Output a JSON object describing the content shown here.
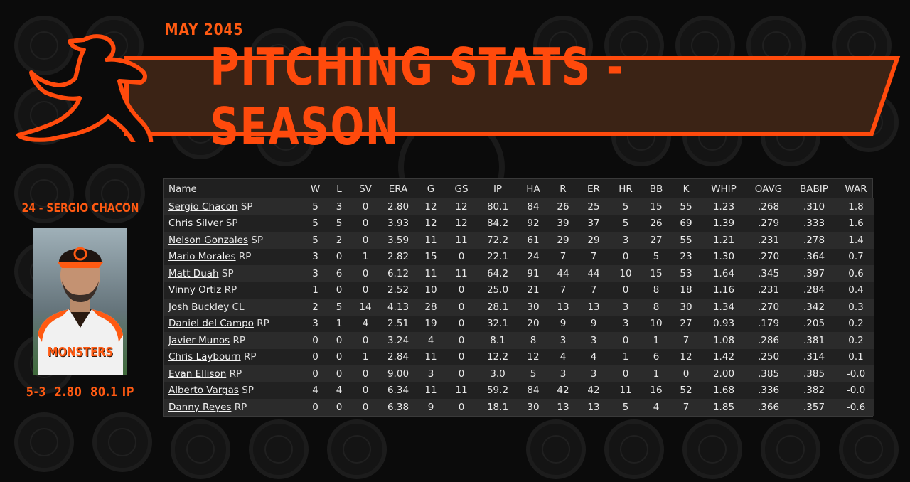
{
  "header": {
    "date": "MAY 2045",
    "title": "PITCHING STATS - SEASON"
  },
  "colors": {
    "accent": "#ff4a0c",
    "banner_fill": "#3b2315",
    "background": "#0b0b0b"
  },
  "player": {
    "name": "24 - SERGIO CHACON",
    "summary": "5-3  2.80  80.1 IP",
    "jersey_text": "MONSTERS"
  },
  "table": {
    "columns": [
      "Name",
      "W",
      "L",
      "SV",
      "ERA",
      "G",
      "GS",
      "IP",
      "HA",
      "R",
      "ER",
      "HR",
      "BB",
      "K",
      "WHIP",
      "OAVG",
      "BABIP",
      "WAR"
    ],
    "rows": [
      {
        "name": "Sergio Chacon",
        "pos": "SP",
        "stats": [
          "5",
          "3",
          "0",
          "2.80",
          "12",
          "12",
          "80.1",
          "84",
          "26",
          "25",
          "5",
          "15",
          "55",
          "1.23",
          ".268",
          ".310",
          "1.8"
        ]
      },
      {
        "name": "Chris Silver",
        "pos": "SP",
        "stats": [
          "5",
          "5",
          "0",
          "3.93",
          "12",
          "12",
          "84.2",
          "92",
          "39",
          "37",
          "5",
          "26",
          "69",
          "1.39",
          ".279",
          ".333",
          "1.6"
        ]
      },
      {
        "name": "Nelson Gonzales",
        "pos": "SP",
        "stats": [
          "5",
          "2",
          "0",
          "3.59",
          "11",
          "11",
          "72.2",
          "61",
          "29",
          "29",
          "3",
          "27",
          "55",
          "1.21",
          ".231",
          ".278",
          "1.4"
        ]
      },
      {
        "name": "Mario Morales",
        "pos": "RP",
        "stats": [
          "3",
          "0",
          "1",
          "2.82",
          "15",
          "0",
          "22.1",
          "24",
          "7",
          "7",
          "0",
          "5",
          "23",
          "1.30",
          ".270",
          ".364",
          "0.7"
        ]
      },
      {
        "name": "Matt Duah",
        "pos": "SP",
        "stats": [
          "3",
          "6",
          "0",
          "6.12",
          "11",
          "11",
          "64.2",
          "91",
          "44",
          "44",
          "10",
          "15",
          "53",
          "1.64",
          ".345",
          ".397",
          "0.6"
        ]
      },
      {
        "name": "Vinny Ortiz",
        "pos": "RP",
        "stats": [
          "1",
          "0",
          "0",
          "2.52",
          "10",
          "0",
          "25.0",
          "21",
          "7",
          "7",
          "0",
          "8",
          "18",
          "1.16",
          ".231",
          ".284",
          "0.4"
        ]
      },
      {
        "name": "Josh Buckley",
        "pos": "CL",
        "stats": [
          "2",
          "5",
          "14",
          "4.13",
          "28",
          "0",
          "28.1",
          "30",
          "13",
          "13",
          "3",
          "8",
          "30",
          "1.34",
          ".270",
          ".342",
          "0.3"
        ]
      },
      {
        "name": "Daniel del Campo",
        "pos": "RP",
        "stats": [
          "3",
          "1",
          "4",
          "2.51",
          "19",
          "0",
          "32.1",
          "20",
          "9",
          "9",
          "3",
          "10",
          "27",
          "0.93",
          ".179",
          ".205",
          "0.2"
        ]
      },
      {
        "name": "Javier Munos",
        "pos": "RP",
        "stats": [
          "0",
          "0",
          "0",
          "3.24",
          "4",
          "0",
          "8.1",
          "8",
          "3",
          "3",
          "0",
          "1",
          "7",
          "1.08",
          ".286",
          ".381",
          "0.2"
        ]
      },
      {
        "name": "Chris Laybourn",
        "pos": "RP",
        "stats": [
          "0",
          "0",
          "1",
          "2.84",
          "11",
          "0",
          "12.2",
          "12",
          "4",
          "4",
          "1",
          "6",
          "12",
          "1.42",
          ".250",
          ".314",
          "0.1"
        ]
      },
      {
        "name": "Evan Ellison",
        "pos": "RP",
        "stats": [
          "0",
          "0",
          "0",
          "9.00",
          "3",
          "0",
          "3.0",
          "5",
          "3",
          "3",
          "0",
          "1",
          "0",
          "2.00",
          ".385",
          ".385",
          "-0.0"
        ]
      },
      {
        "name": "Alberto Vargas",
        "pos": "SP",
        "stats": [
          "4",
          "4",
          "0",
          "6.34",
          "11",
          "11",
          "59.2",
          "84",
          "42",
          "42",
          "11",
          "16",
          "52",
          "1.68",
          ".336",
          ".382",
          "-0.0"
        ]
      },
      {
        "name": "Danny Reyes",
        "pos": "RP",
        "stats": [
          "0",
          "0",
          "0",
          "6.38",
          "9",
          "0",
          "18.1",
          "30",
          "13",
          "13",
          "5",
          "4",
          "7",
          "1.85",
          ".366",
          ".357",
          "-0.6"
        ]
      }
    ]
  }
}
